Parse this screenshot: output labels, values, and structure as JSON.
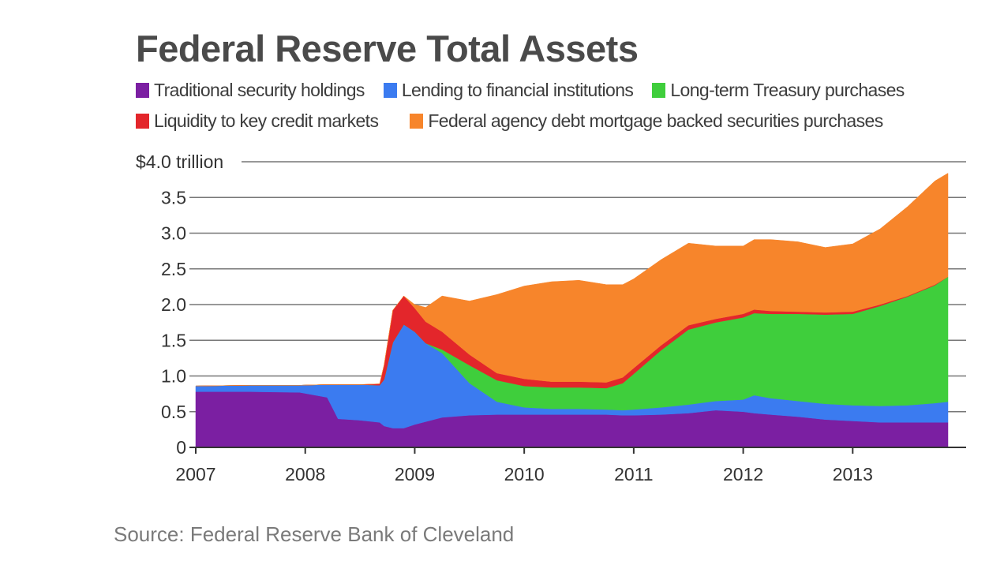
{
  "header": {
    "title": "Federal Reserve Total Assets"
  },
  "footer": {
    "source": "Source: Federal Reserve Bank of Cleveland"
  },
  "chart_data": {
    "type": "area",
    "stacked": true,
    "title": "Federal Reserve Total Assets",
    "y_unit_label": "$4.0 trillion",
    "ylim": [
      0,
      4.0
    ],
    "xlim": [
      2007.0,
      2013.87
    ],
    "grid": true,
    "legend_placement": "top",
    "y_ticks": [
      "0",
      "0.5",
      "1.0",
      "1.5",
      "2.0",
      "2.5",
      "3.0",
      "3.5",
      "$4.0 trillion"
    ],
    "y_tick_values": [
      0,
      0.5,
      1.0,
      1.5,
      2.0,
      2.5,
      3.0,
      3.5,
      4.0
    ],
    "x_ticks": [
      "2007",
      "2008",
      "2009",
      "2010",
      "2011",
      "2012",
      "2013"
    ],
    "x_tick_values": [
      2007,
      2008,
      2009,
      2010,
      2011,
      2012,
      2013
    ],
    "x": [
      2007.0,
      2007.5,
      2007.95,
      2008.2,
      2008.3,
      2008.5,
      2008.68,
      2008.72,
      2008.8,
      2008.9,
      2009.0,
      2009.1,
      2009.25,
      2009.5,
      2009.75,
      2010.0,
      2010.25,
      2010.5,
      2010.75,
      2010.9,
      2011.0,
      2011.25,
      2011.5,
      2011.75,
      2012.0,
      2012.1,
      2012.25,
      2012.5,
      2012.75,
      2013.0,
      2013.25,
      2013.5,
      2013.75,
      2013.87
    ],
    "series": [
      {
        "name": "Traditional security holdings",
        "color": "#7b1fa2",
        "values": [
          0.78,
          0.78,
          0.77,
          0.7,
          0.4,
          0.38,
          0.35,
          0.3,
          0.27,
          0.27,
          0.32,
          0.36,
          0.42,
          0.45,
          0.46,
          0.46,
          0.46,
          0.46,
          0.46,
          0.45,
          0.45,
          0.46,
          0.48,
          0.52,
          0.5,
          0.48,
          0.46,
          0.43,
          0.39,
          0.37,
          0.35,
          0.35,
          0.35,
          0.35
        ]
      },
      {
        "name": "Lending to financial institutions",
        "color": "#3b7bf0",
        "values": [
          0.08,
          0.09,
          0.1,
          0.18,
          0.48,
          0.5,
          0.52,
          0.65,
          1.2,
          1.45,
          1.3,
          1.1,
          0.9,
          0.45,
          0.18,
          0.1,
          0.08,
          0.08,
          0.07,
          0.07,
          0.08,
          0.1,
          0.12,
          0.13,
          0.17,
          0.25,
          0.23,
          0.22,
          0.22,
          0.22,
          0.23,
          0.24,
          0.27,
          0.29
        ]
      },
      {
        "name": "Long-term Treasury purchases",
        "color": "#3fce3c",
        "values": [
          0,
          0,
          0,
          0,
          0,
          0,
          0,
          0,
          0,
          0,
          0,
          0,
          0.05,
          0.25,
          0.3,
          0.3,
          0.3,
          0.3,
          0.3,
          0.38,
          0.5,
          0.8,
          1.05,
          1.1,
          1.15,
          1.15,
          1.18,
          1.22,
          1.25,
          1.28,
          1.4,
          1.52,
          1.65,
          1.75
        ]
      },
      {
        "name": "Liquidity to key credit markets",
        "color": "#e3262b",
        "values": [
          0,
          0,
          0,
          0,
          0,
          0,
          0.02,
          0.2,
          0.45,
          0.4,
          0.33,
          0.3,
          0.25,
          0.15,
          0.1,
          0.1,
          0.08,
          0.08,
          0.08,
          0.08,
          0.08,
          0.07,
          0.06,
          0.05,
          0.05,
          0.05,
          0.04,
          0.03,
          0.03,
          0.03,
          0.02,
          0.01,
          0.01,
          0.0
        ]
      },
      {
        "name": "Federal agency debt mortgage backed securities purchases",
        "color": "#f7852b",
        "values": [
          0,
          0,
          0,
          0,
          0,
          0,
          0,
          0,
          0,
          0,
          0.05,
          0.2,
          0.5,
          0.75,
          1.1,
          1.3,
          1.4,
          1.42,
          1.37,
          1.3,
          1.25,
          1.2,
          1.15,
          1.02,
          0.95,
          0.98,
          1.0,
          0.98,
          0.91,
          0.95,
          1.06,
          1.25,
          1.45,
          1.45
        ]
      }
    ]
  }
}
